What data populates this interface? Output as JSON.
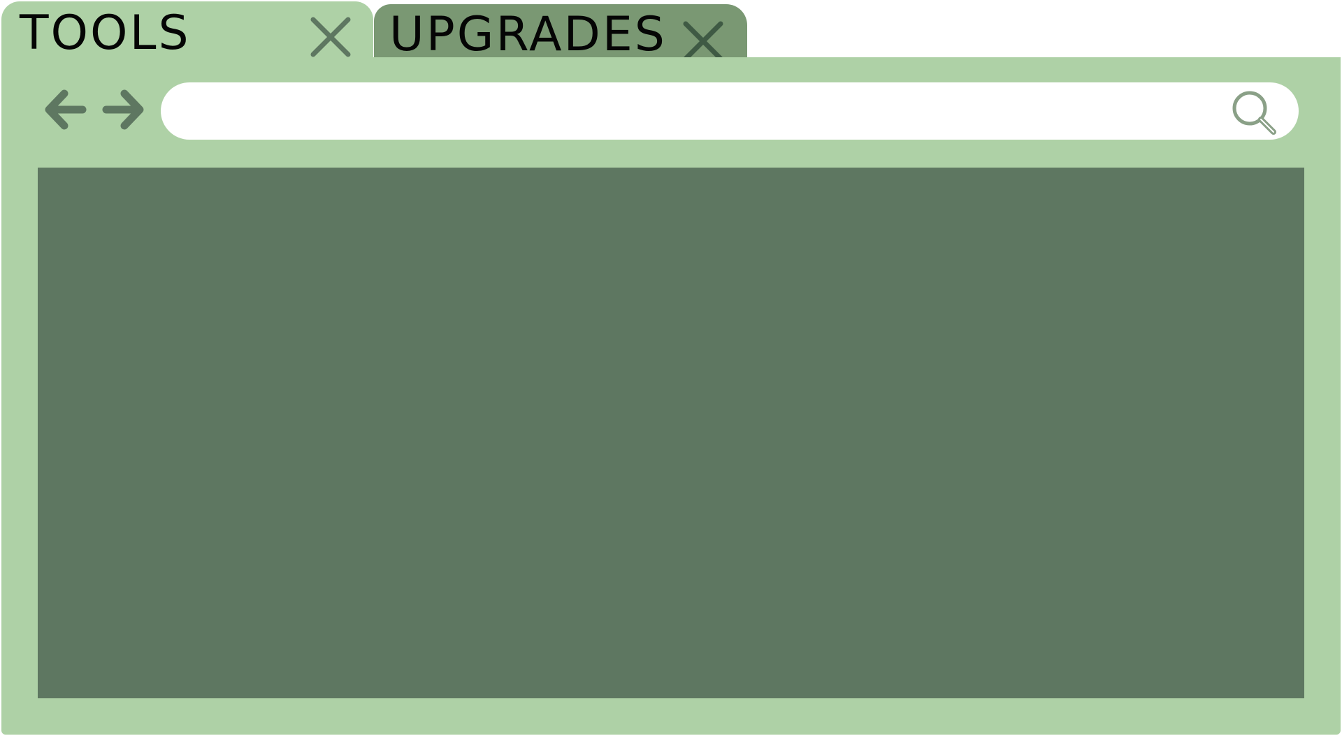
{
  "colors": {
    "frame": "#aed1a6",
    "inactive_tab": "#7a9873",
    "content": "#5e7761",
    "icon": "#5e7761",
    "search_icon": "#8aa087",
    "text": "#050505"
  },
  "tabs": [
    {
      "label": "TOOLS",
      "active": true,
      "close_icon": "close-icon"
    },
    {
      "label": "UPGRADES",
      "active": false,
      "close_icon": "close-icon"
    }
  ],
  "toolbar": {
    "back_icon": "arrow-left-icon",
    "forward_icon": "arrow-right-icon"
  },
  "address_bar": {
    "value": "",
    "placeholder": "",
    "search_icon": "search-icon"
  }
}
